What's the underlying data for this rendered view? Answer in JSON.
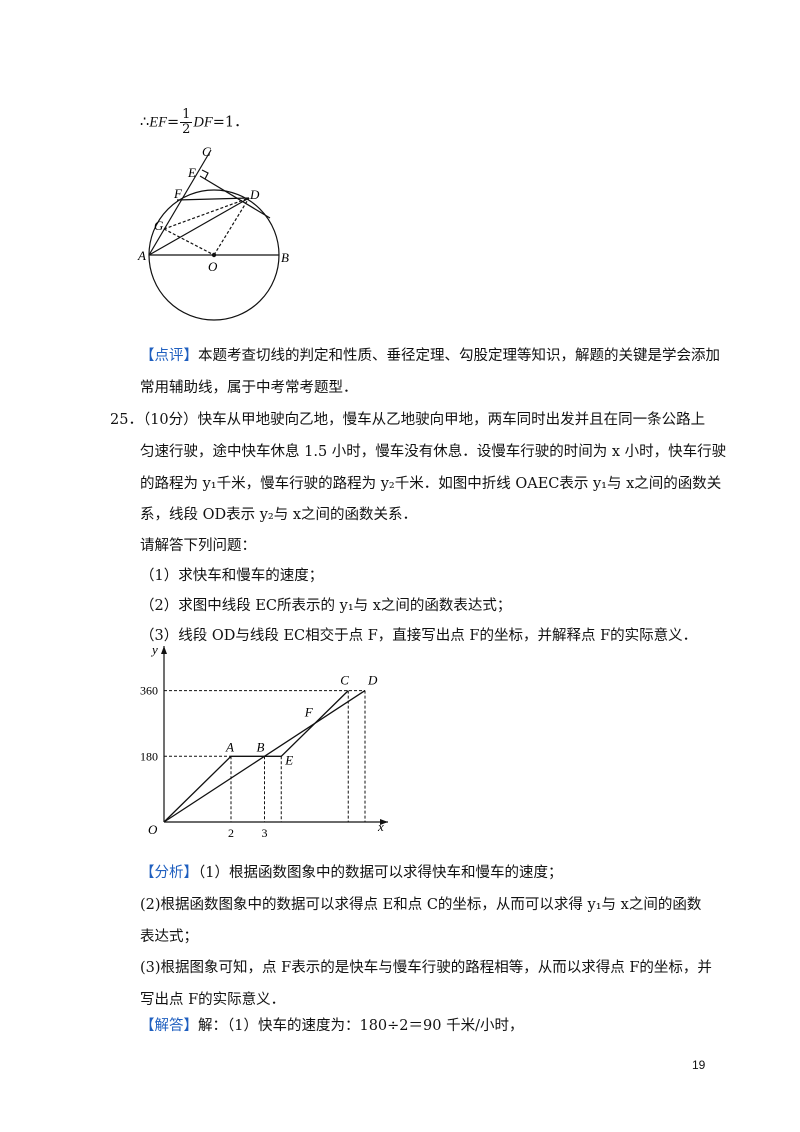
{
  "conclusion": {
    "prefix": "∴",
    "lhs": "EF",
    "eq": "=",
    "num": "1",
    "den": "2",
    "mid": "DF",
    "rhs": "=1．"
  },
  "geometry_figure": {
    "labels": {
      "C": "C",
      "E": "E",
      "F": "F",
      "D": "D",
      "G": "G",
      "A": "A",
      "O": "O",
      "B": "B"
    }
  },
  "comment": {
    "tag": "【点评】",
    "line1": "本题考查切线的判定和性质、垂径定理、勾股定理等知识，解题的关键是学会添加",
    "line2": "常用辅助线，属于中考常考题型．"
  },
  "problem": {
    "number": "25．",
    "line1": "（10分）快车从甲地驶向乙地，慢车从乙地驶向甲地，两车同时出发并且在同一条公路上",
    "line2": "匀速行驶，途中快车休息 1.5 小时，慢车没有休息．设慢车行驶的时间为 x 小时，快车行驶",
    "line3": "的路程为 y₁千米，慢车行驶的路程为 y₂千米．如图中折线 OAEC表示 y₁与 x之间的函数关",
    "line4": "系，线段 OD表示 y₂与 x之间的函数关系．",
    "prompt": "请解答下列问题：",
    "q1": "（1）求快车和慢车的速度；",
    "q2": "（2）求图中线段 EC所表示的 y₁与 x之间的函数表达式；",
    "q3": "（3）线段 OD与线段 EC相交于点 F，直接写出点 F的坐标，并解释点 F的实际意义．"
  },
  "chart_data": {
    "type": "line",
    "title": "",
    "xlabel": "x",
    "ylabel": "y",
    "x_ticks": [
      "2",
      "3"
    ],
    "y_ticks": [
      "180",
      "360"
    ],
    "origin_label": "O",
    "series": [
      {
        "points": [
          [
            0,
            0
          ],
          [
            2,
            180
          ],
          [
            3.5,
            180
          ],
          [
            5.5,
            360
          ]
        ],
        "point_labels": [
          "",
          "A",
          "E",
          "C"
        ]
      },
      {
        "points": [
          [
            0,
            0
          ],
          [
            6,
            360
          ]
        ],
        "point_labels": [
          "",
          "D"
        ]
      }
    ],
    "annotations": [
      {
        "label": "B",
        "x": 3,
        "y": 180
      },
      {
        "label": "F",
        "x": 4.5,
        "y": 270
      }
    ]
  },
  "analysis": {
    "tag": "【分析】",
    "line1": "（1）根据函数图象中的数据可以求得快车和慢车的速度；",
    "line2": "(2)根据函数图象中的数据可以求得点 E和点 C的坐标，从而可以求得 y₁与 x之间的函数",
    "line3": "表达式；",
    "line4": "(3)根据图象可知，点 F表示的是快车与慢车行驶的路程相等，从而以求得点 F的坐标，并",
    "line5": "写出点 F的实际意义．"
  },
  "solution": {
    "tag": "【解答】",
    "line1": "解：（1）快车的速度为：180÷2＝90 千米/小时，"
  },
  "page_number": "19"
}
